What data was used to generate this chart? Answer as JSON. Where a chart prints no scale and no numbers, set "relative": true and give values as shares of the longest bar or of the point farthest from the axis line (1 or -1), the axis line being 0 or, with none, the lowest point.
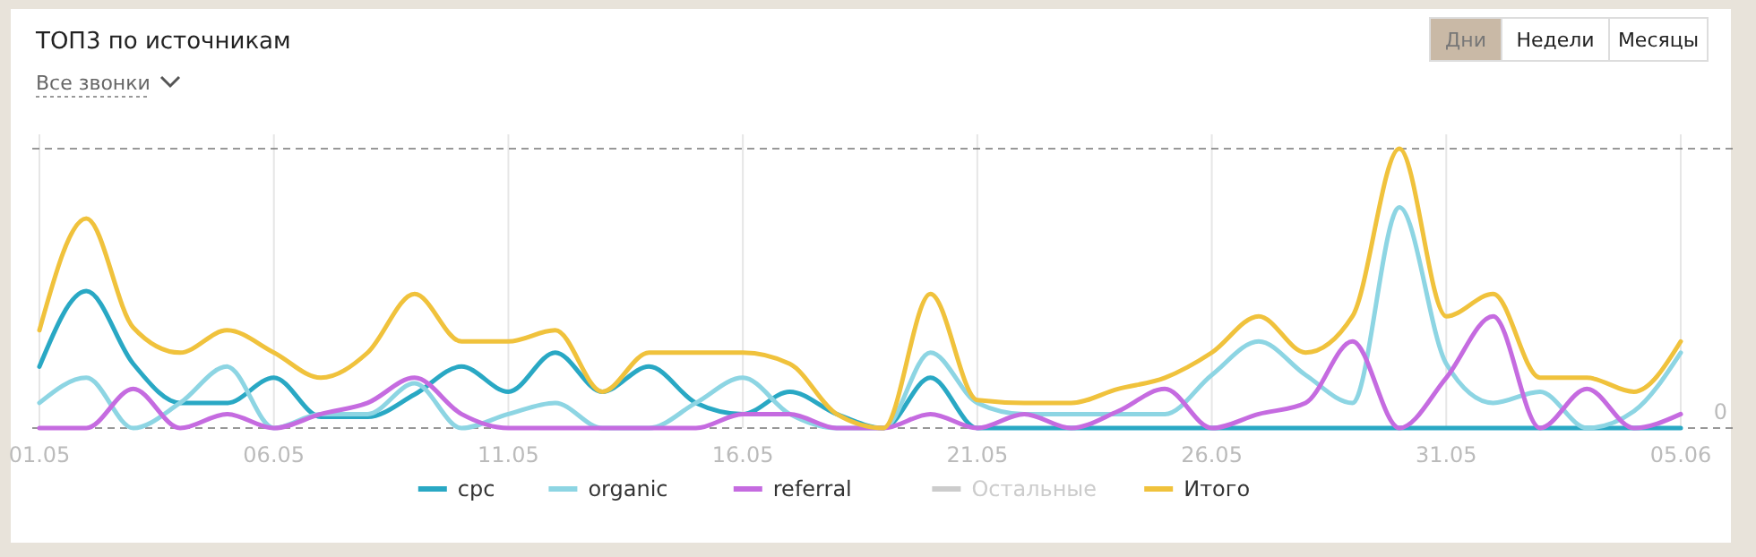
{
  "chart_data": {
    "type": "line",
    "title": "ТОП3 по источникам",
    "relative": true,
    "grid": "x",
    "legend": "bottom",
    "marker": "none",
    "line_style": "solid",
    "categories": [
      "01.05",
      null,
      null,
      null,
      null,
      "06.05",
      null,
      null,
      null,
      null,
      "11.05",
      null,
      null,
      null,
      null,
      "16.05",
      null,
      null,
      null,
      null,
      "21.05",
      null,
      null,
      null,
      null,
      "26.05",
      null,
      null,
      null,
      null,
      "31.05",
      null,
      null,
      null,
      null,
      "05.06"
    ],
    "series": [
      {
        "name": "cpc",
        "color": "#29a8c4",
        "values": [
          0.22,
          0.49,
          0.23,
          0.09,
          0.09,
          0.18,
          0.04,
          0.04,
          0.12,
          0.22,
          0.13,
          0.27,
          0.13,
          0.22,
          0.09,
          0.05,
          0.13,
          0.05,
          0,
          0.18,
          0,
          0,
          0,
          0,
          0,
          0,
          0,
          0,
          0,
          0,
          0,
          0,
          0,
          0,
          0,
          0
        ]
      },
      {
        "name": "organic",
        "color": "#8dd5e3",
        "values": [
          0.09,
          0.18,
          0,
          0.09,
          0.22,
          0,
          0.05,
          0.05,
          0.16,
          0,
          0.05,
          0.09,
          0,
          0,
          0.09,
          0.18,
          0.05,
          0,
          0,
          0.27,
          0.09,
          0.05,
          0.05,
          0.05,
          0.05,
          0.19,
          0.31,
          0.19,
          0.09,
          0.79,
          0.23,
          0.09,
          0.13,
          0,
          0.06,
          0.27
        ]
      },
      {
        "name": "referral",
        "color": "#c56be0",
        "values": [
          0,
          0,
          0.14,
          0,
          0.05,
          0,
          0.05,
          0.09,
          0.18,
          0.05,
          0,
          0,
          0,
          0,
          0,
          0.05,
          0.05,
          0,
          0,
          0.05,
          0,
          0.05,
          0,
          0.06,
          0.14,
          0,
          0.05,
          0.09,
          0.31,
          0,
          0.18,
          0.4,
          0,
          0.14,
          0,
          0.05
        ]
      },
      {
        "name": "Остальные",
        "color": "#cccccc",
        "values": [
          null,
          null,
          null,
          null,
          null,
          null,
          null,
          null,
          null,
          null,
          null,
          null,
          null,
          null,
          null,
          null,
          null,
          null,
          null,
          null,
          null,
          null,
          null,
          null,
          null,
          null,
          null,
          null,
          null,
          null,
          null,
          null,
          null,
          null,
          null,
          null
        ]
      },
      {
        "name": "Итого",
        "color": "#f0c23c",
        "values": [
          0.35,
          0.75,
          0.36,
          0.27,
          0.35,
          0.27,
          0.18,
          0.27,
          0.48,
          0.31,
          0.31,
          0.35,
          0.13,
          0.27,
          0.27,
          0.27,
          0.23,
          0.05,
          0,
          0.48,
          0.1,
          0.09,
          0.09,
          0.14,
          0.18,
          0.27,
          0.4,
          0.27,
          0.4,
          1,
          0.4,
          0.48,
          0.18,
          0.18,
          0.13,
          0.31
        ]
      }
    ],
    "ref_lines": [
      {
        "axis": "y",
        "value": 0,
        "label": "0",
        "line_style": "dashed"
      },
      {
        "axis": "y",
        "value": 1,
        "label": null,
        "line_style": "dashed"
      }
    ],
    "annotations": [
      "Все звонки",
      "Дни",
      "Недели",
      "Месяцы"
    ]
  }
}
